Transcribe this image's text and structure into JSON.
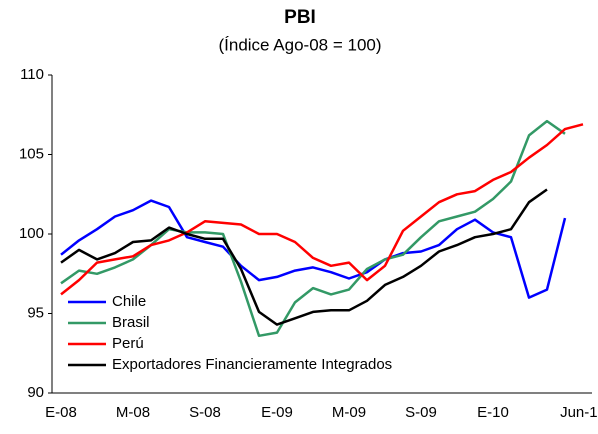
{
  "chart_data": {
    "type": "line",
    "title": "PBI",
    "subtitle": "(Índice Ago-08 = 100)",
    "categories": [
      "E-08",
      null,
      null,
      null,
      "M-08",
      null,
      null,
      null,
      "S-08",
      null,
      null,
      null,
      "E-09",
      null,
      null,
      null,
      "M-09",
      null,
      null,
      null,
      "S-09",
      null,
      null,
      null,
      "E-10",
      null,
      null,
      null,
      null,
      "Jun-10"
    ],
    "series": [
      {
        "name": "Chile",
        "color": "#0000ff",
        "values": [
          98.7,
          99.6,
          100.3,
          101.1,
          101.5,
          102.1,
          101.7,
          99.8,
          99.5,
          99.2,
          98.0,
          97.1,
          97.3,
          97.7,
          97.9,
          97.6,
          97.2,
          97.6,
          98.4,
          98.8,
          98.9,
          99.3,
          100.3,
          100.9,
          100.1,
          99.8,
          96.0,
          96.5,
          101.0,
          null
        ]
      },
      {
        "name": "Brasil",
        "color": "#339966",
        "values": [
          96.9,
          97.7,
          97.5,
          97.9,
          98.4,
          99.3,
          100.3,
          100.1,
          100.1,
          100.0,
          97.0,
          93.6,
          93.8,
          95.7,
          96.6,
          96.2,
          96.5,
          97.8,
          98.4,
          98.7,
          99.8,
          100.8,
          101.1,
          101.4,
          102.2,
          103.3,
          106.2,
          107.1,
          106.3,
          null
        ]
      },
      {
        "name": "Perú",
        "color": "#ff0000",
        "values": [
          96.2,
          97.1,
          98.2,
          98.4,
          98.6,
          99.3,
          99.6,
          100.1,
          100.8,
          100.7,
          100.6,
          100.0,
          100.0,
          99.5,
          98.5,
          98.0,
          98.2,
          97.1,
          98.0,
          100.2,
          101.1,
          102.0,
          102.5,
          102.7,
          103.4,
          103.9,
          104.8,
          105.6,
          106.6,
          106.9
        ]
      },
      {
        "name": "Exportadores Financieramente Integrados",
        "color": "#000000",
        "values": [
          98.2,
          99.0,
          98.4,
          98.8,
          99.5,
          99.6,
          100.4,
          100.0,
          99.7,
          99.7,
          97.8,
          95.1,
          94.3,
          94.7,
          95.1,
          95.2,
          95.2,
          95.8,
          96.8,
          97.3,
          98.0,
          98.9,
          99.3,
          99.8,
          100.0,
          100.3,
          102.0,
          102.8,
          null,
          null
        ]
      }
    ],
    "ylim": [
      90,
      110
    ],
    "yticks": [
      90,
      95,
      100,
      105,
      110
    ],
    "grid": false
  }
}
